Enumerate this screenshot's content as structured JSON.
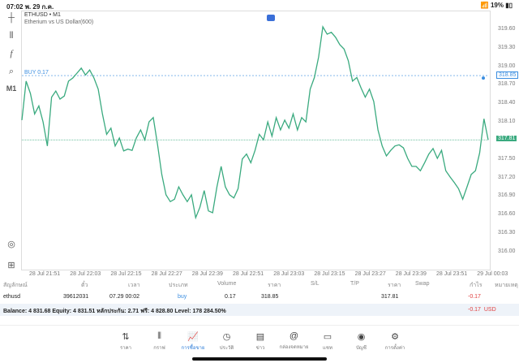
{
  "status": {
    "time": "07:02",
    "date": "พ. 29 ก.ค.",
    "battery": "19%"
  },
  "toolbar": {
    "timeframe": "M1"
  },
  "chart_data": {
    "type": "line",
    "title": "ETHUSD • M1",
    "subtitle": "Etherium vs US Dollar(600)",
    "symbol_flag": "MT",
    "ylim": [
      315.85,
      319.8
    ],
    "yticks": [
      "319.60",
      "319.30",
      "319.00",
      "318.70",
      "318.40",
      "318.10",
      "317.50",
      "317.20",
      "316.90",
      "316.60",
      "316.30",
      "316.00"
    ],
    "xticks": [
      "28 Jul 21:51",
      "28 Jul 22:03",
      "28 Jul 22:15",
      "28 Jul 22:27",
      "28 Jul 22:39",
      "28 Jul 22:51",
      "28 Jul 23:03",
      "28 Jul 23:15",
      "28 Jul 23:27",
      "28 Jul 23:39",
      "28 Jul 23:51",
      "29 Jul 00:03"
    ],
    "buy_line": {
      "label": "BUY 0.17",
      "price": 318.85,
      "tag": "318.85"
    },
    "current_price": {
      "price": 317.81,
      "tag": "317.81"
    },
    "values": [
      318.13,
      318.76,
      318.56,
      318.23,
      318.36,
      318.1,
      317.71,
      318.5,
      318.6,
      318.47,
      318.52,
      318.76,
      318.81,
      318.89,
      318.97,
      318.86,
      318.94,
      318.81,
      318.63,
      318.23,
      317.9,
      318.0,
      317.71,
      317.84,
      317.63,
      317.66,
      317.64,
      317.84,
      317.97,
      317.81,
      318.1,
      318.17,
      317.73,
      317.25,
      316.92,
      316.81,
      316.85,
      317.05,
      316.92,
      316.81,
      316.92,
      316.55,
      316.72,
      316.99,
      316.66,
      316.63,
      317.05,
      317.38,
      317.05,
      316.92,
      316.87,
      317.02,
      317.5,
      317.58,
      317.44,
      317.64,
      317.9,
      317.81,
      318.1,
      317.87,
      318.17,
      317.97,
      318.13,
      318.0,
      318.23,
      317.97,
      318.17,
      318.1,
      318.63,
      318.82,
      319.15,
      319.64,
      319.52,
      319.55,
      319.47,
      319.35,
      319.28,
      319.09,
      318.76,
      318.82,
      318.65,
      318.5,
      318.63,
      318.43,
      317.97,
      317.71,
      317.55,
      317.64,
      317.71,
      317.73,
      317.68,
      317.51,
      317.38,
      317.38,
      317.31,
      317.44,
      317.58,
      317.67,
      317.51,
      317.64,
      317.31,
      317.21,
      317.12,
      317.02,
      316.85,
      317.05,
      317.25,
      317.31,
      317.6,
      318.15,
      317.81
    ],
    "line_color": "#3aaa7f",
    "buy_color": "#3b8ee0"
  },
  "table": {
    "headers": [
      "สัญลักษณ์",
      "ตั๋ว",
      "เวลา",
      "ประเภท",
      "Volume",
      "ราคา",
      "S/L",
      "T/P",
      "ราคา",
      "Swap",
      "กำไร",
      "หมายเหตุ"
    ],
    "row": {
      "symbol": "ethusd",
      "ticket": "39612031",
      "time": "07.29 00:02",
      "type": "buy",
      "volume": "0.17",
      "open_price": "318.85",
      "price": "317.81",
      "profit": "-0.17"
    },
    "balance": "Balance: 4 831.68 Equity: 4 831.51 หลักประกัน: 2.71 ฟรี: 4 828.80 Level: 178 284.50%",
    "total_profit": "-0.17",
    "currency": "USD"
  },
  "nav": [
    {
      "label": "ราคา",
      "icon": "⇅"
    },
    {
      "label": "กราฟ",
      "icon": "⫴"
    },
    {
      "label": "การซื้อขาย",
      "icon": "📈"
    },
    {
      "label": "ประวัติ",
      "icon": "◷"
    },
    {
      "label": "ข่าว",
      "icon": "▤"
    },
    {
      "label": "กล่องจดหมาย",
      "icon": "@"
    },
    {
      "label": "แชท",
      "icon": "▭"
    },
    {
      "label": "บัญชี",
      "icon": "◉"
    },
    {
      "label": "การตั้งค่า",
      "icon": "⚙"
    }
  ]
}
